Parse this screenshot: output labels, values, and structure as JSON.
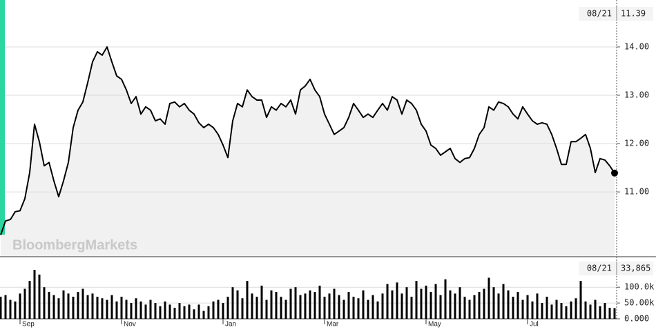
{
  "chart_data": [
    {
      "type": "line",
      "watermark": "BloombergMarkets",
      "color": "#000000",
      "fill": "#f1f1f1",
      "grid": true,
      "ylim": [
        9.66,
        14.97
      ],
      "yticks": [
        {
          "value": 11,
          "label": "11.00"
        },
        {
          "value": 12,
          "label": "12.00"
        },
        {
          "value": 13,
          "label": "13.00"
        },
        {
          "value": 14,
          "label": "14.00"
        }
      ],
      "current": {
        "date": "08/21",
        "value": 11.39
      },
      "values": [
        10.11,
        10.4,
        10.43,
        10.59,
        10.61,
        10.86,
        11.4,
        12.4,
        12.04,
        11.54,
        11.61,
        11.23,
        10.9,
        11.23,
        11.61,
        12.33,
        12.69,
        12.86,
        13.26,
        13.69,
        13.9,
        13.83,
        14.0,
        13.69,
        13.4,
        13.33,
        13.11,
        12.83,
        12.97,
        12.61,
        12.76,
        12.69,
        12.47,
        12.51,
        12.4,
        12.83,
        12.86,
        12.76,
        12.83,
        12.69,
        12.61,
        12.43,
        12.33,
        12.4,
        12.33,
        12.19,
        11.97,
        11.71,
        12.47,
        12.83,
        12.76,
        13.11,
        12.97,
        12.9,
        12.9,
        12.54,
        12.76,
        12.69,
        12.83,
        12.76,
        12.9,
        12.61,
        13.11,
        13.19,
        13.33,
        13.11,
        12.97,
        12.61,
        12.4,
        12.19,
        12.26,
        12.33,
        12.54,
        12.83,
        12.69,
        12.54,
        12.61,
        12.54,
        12.69,
        12.83,
        12.69,
        12.97,
        12.9,
        12.61,
        12.9,
        12.83,
        12.69,
        12.4,
        12.26,
        11.97,
        11.9,
        11.76,
        11.83,
        11.9,
        11.69,
        11.61,
        11.69,
        11.71,
        11.9,
        12.19,
        12.33,
        12.76,
        12.69,
        12.86,
        12.83,
        12.76,
        12.61,
        12.51,
        12.76,
        12.61,
        12.47,
        12.4,
        12.43,
        12.4,
        12.19,
        11.9,
        11.57,
        11.57,
        12.04,
        12.04,
        12.11,
        12.19,
        11.9,
        11.4,
        11.69,
        11.66,
        11.54,
        11.39
      ]
    },
    {
      "type": "bar",
      "color": "#000000",
      "grid": true,
      "ylim": [
        0,
        190000
      ],
      "yticks": [
        {
          "value": 0,
          "label": "0.000"
        },
        {
          "value": 50000,
          "label": "50.00k"
        },
        {
          "value": 100000,
          "label": "100.0k"
        }
      ],
      "current": {
        "date": "08/21",
        "value": 33865,
        "label": "33,865"
      },
      "categories": [
        null,
        null,
        null,
        null,
        "Sep",
        null,
        null,
        null,
        null,
        null,
        null,
        null,
        null,
        null,
        null,
        null,
        null,
        null,
        null,
        null,
        null,
        null,
        null,
        null,
        null,
        "Nov",
        null,
        null,
        null,
        null,
        null,
        null,
        null,
        null,
        null,
        null,
        null,
        null,
        null,
        null,
        null,
        null,
        null,
        null,
        null,
        null,
        "Jan",
        null,
        null,
        null,
        null,
        null,
        null,
        null,
        null,
        null,
        null,
        null,
        null,
        null,
        null,
        null,
        null,
        null,
        null,
        null,
        null,
        "Mar",
        null,
        null,
        null,
        null,
        null,
        null,
        null,
        null,
        null,
        null,
        null,
        null,
        null,
        null,
        null,
        null,
        null,
        null,
        null,
        null,
        "May",
        null,
        null,
        null,
        null,
        null,
        null,
        null,
        null,
        null,
        null,
        null,
        null,
        null,
        null,
        null,
        null,
        null,
        null,
        null,
        null,
        "Jul",
        null,
        null,
        null,
        null,
        null,
        null,
        null,
        null,
        null,
        null,
        null,
        null,
        null,
        null,
        null,
        null,
        null,
        null
      ],
      "values": [
        70000,
        75000,
        60000,
        55000,
        80000,
        95000,
        120000,
        155000,
        140000,
        100000,
        85000,
        75000,
        65000,
        90000,
        80000,
        70000,
        85000,
        95000,
        75000,
        80000,
        70000,
        65000,
        60000,
        75000,
        55000,
        70000,
        60000,
        50000,
        65000,
        55000,
        45000,
        60000,
        50000,
        40000,
        55000,
        45000,
        35000,
        50000,
        40000,
        45000,
        30000,
        45000,
        25000,
        40000,
        55000,
        60000,
        50000,
        70000,
        100000,
        90000,
        65000,
        120000,
        80000,
        70000,
        105000,
        60000,
        90000,
        85000,
        70000,
        60000,
        95000,
        100000,
        75000,
        80000,
        90000,
        85000,
        105000,
        70000,
        80000,
        95000,
        75000,
        60000,
        85000,
        70000,
        65000,
        90000,
        60000,
        75000,
        55000,
        80000,
        110000,
        90000,
        115000,
        80000,
        100000,
        70000,
        120000,
        95000,
        105000,
        85000,
        110000,
        75000,
        125000,
        90000,
        80000,
        100000,
        70000,
        60000,
        75000,
        85000,
        95000,
        130000,
        100000,
        80000,
        110000,
        90000,
        70000,
        85000,
        60000,
        75000,
        55000,
        80000,
        50000,
        70000,
        45000,
        60000,
        50000,
        40000,
        55000,
        65000,
        120000,
        55000,
        45000,
        60000,
        40000,
        50000,
        35000,
        33865
      ]
    }
  ]
}
